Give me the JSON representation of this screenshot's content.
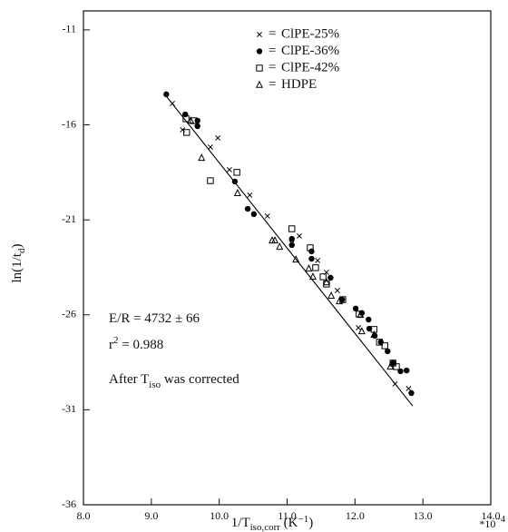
{
  "chart_data": {
    "type": "scatter",
    "x_label": [
      "1/T",
      "iso,corr",
      " (K",
      "−1",
      ")"
    ],
    "y_label": [
      "ln(1/t",
      "d",
      ")"
    ],
    "x_multiplier": [
      "*10",
      "−4"
    ],
    "xlim": [
      8,
      14
    ],
    "ylim": [
      -36,
      -10
    ],
    "xticks": [
      {
        "value": 8,
        "label": "8.0"
      },
      {
        "value": 9,
        "label": "9.0"
      },
      {
        "value": 10,
        "label": "10.0"
      },
      {
        "value": 11,
        "label": "11.0"
      },
      {
        "value": 12,
        "label": "12.0"
      },
      {
        "value": 13,
        "label": "13.0"
      },
      {
        "value": 14,
        "label": "14.0"
      }
    ],
    "yticks": [
      -36,
      -31,
      -26,
      -21,
      -16,
      -11
    ],
    "legend_separator": "=",
    "legend": "upper right",
    "annotations": [
      [
        "E/R = 4732 ± 66"
      ],
      [
        "r",
        "2",
        " = 0.988"
      ],
      [
        "After T",
        "iso",
        " was corrected"
      ]
    ],
    "fit_line": {
      "x": [
        9.2,
        12.85
      ],
      "values": [
        -14.4,
        -30.8
      ],
      "color": "#000000"
    },
    "series": [
      {
        "name": "ClPE-25%",
        "marker": "x",
        "color": "#000000",
        "x": [
          9.31,
          9.46,
          9.87,
          9.98,
          10.15,
          10.45,
          10.71,
          11.07,
          11.18,
          11.45,
          11.58,
          11.74,
          12.05,
          12.59,
          12.79
        ],
        "values": [
          -14.87,
          -16.26,
          -17.17,
          -16.69,
          -18.36,
          -19.7,
          -20.8,
          -22.23,
          -21.85,
          -23.14,
          -23.76,
          -24.72,
          -26.68,
          -29.64,
          -29.88
        ]
      },
      {
        "name": "ClPE-36%",
        "marker": "circle",
        "color": "#000000",
        "x": [
          9.22,
          9.5,
          9.68,
          9.68,
          10.23,
          10.42,
          10.51,
          11.07,
          11.07,
          11.36,
          11.36,
          11.64,
          11.81,
          12.01,
          12.1,
          12.2,
          12.21,
          12.29,
          12.38,
          12.48,
          12.56,
          12.67,
          12.76,
          12.83
        ],
        "values": [
          -14.39,
          -15.45,
          -15.78,
          -16.07,
          -18.98,
          -20.42,
          -20.7,
          -22.0,
          -22.33,
          -22.66,
          -23.05,
          -24.05,
          -25.2,
          -25.67,
          -25.9,
          -26.25,
          -26.73,
          -27.1,
          -27.44,
          -27.92,
          -28.54,
          -28.97,
          -28.93,
          -30.12
        ]
      },
      {
        "name": "ClPE-42%",
        "marker": "square",
        "color": "#000000",
        "x": [
          9.51,
          9.52,
          9.62,
          9.87,
          10.26,
          11.07,
          11.34,
          11.42,
          11.53,
          11.58,
          11.82,
          12.06,
          12.28,
          12.36,
          12.44,
          12.56,
          12.61
        ],
        "values": [
          -15.68,
          -16.4,
          -15.78,
          -18.94,
          -18.5,
          -21.47,
          -22.47,
          -23.52,
          -24.0,
          -24.38,
          -25.2,
          -25.96,
          -26.77,
          -27.44,
          -27.63,
          -28.54,
          -28.73
        ]
      },
      {
        "name": "HDPE",
        "marker": "triangle",
        "color": "#000000",
        "x": [
          9.58,
          9.74,
          10.27,
          10.78,
          10.82,
          10.89,
          11.13,
          11.32,
          11.38,
          11.58,
          11.65,
          11.77,
          12.08,
          12.1,
          12.28,
          12.52
        ],
        "values": [
          -15.78,
          -17.74,
          -19.6,
          -22.09,
          -22.09,
          -22.42,
          -23.09,
          -23.57,
          -24.0,
          -24.29,
          -25.0,
          -25.29,
          -26.01,
          -26.87,
          -27.06,
          -28.73
        ]
      }
    ]
  }
}
